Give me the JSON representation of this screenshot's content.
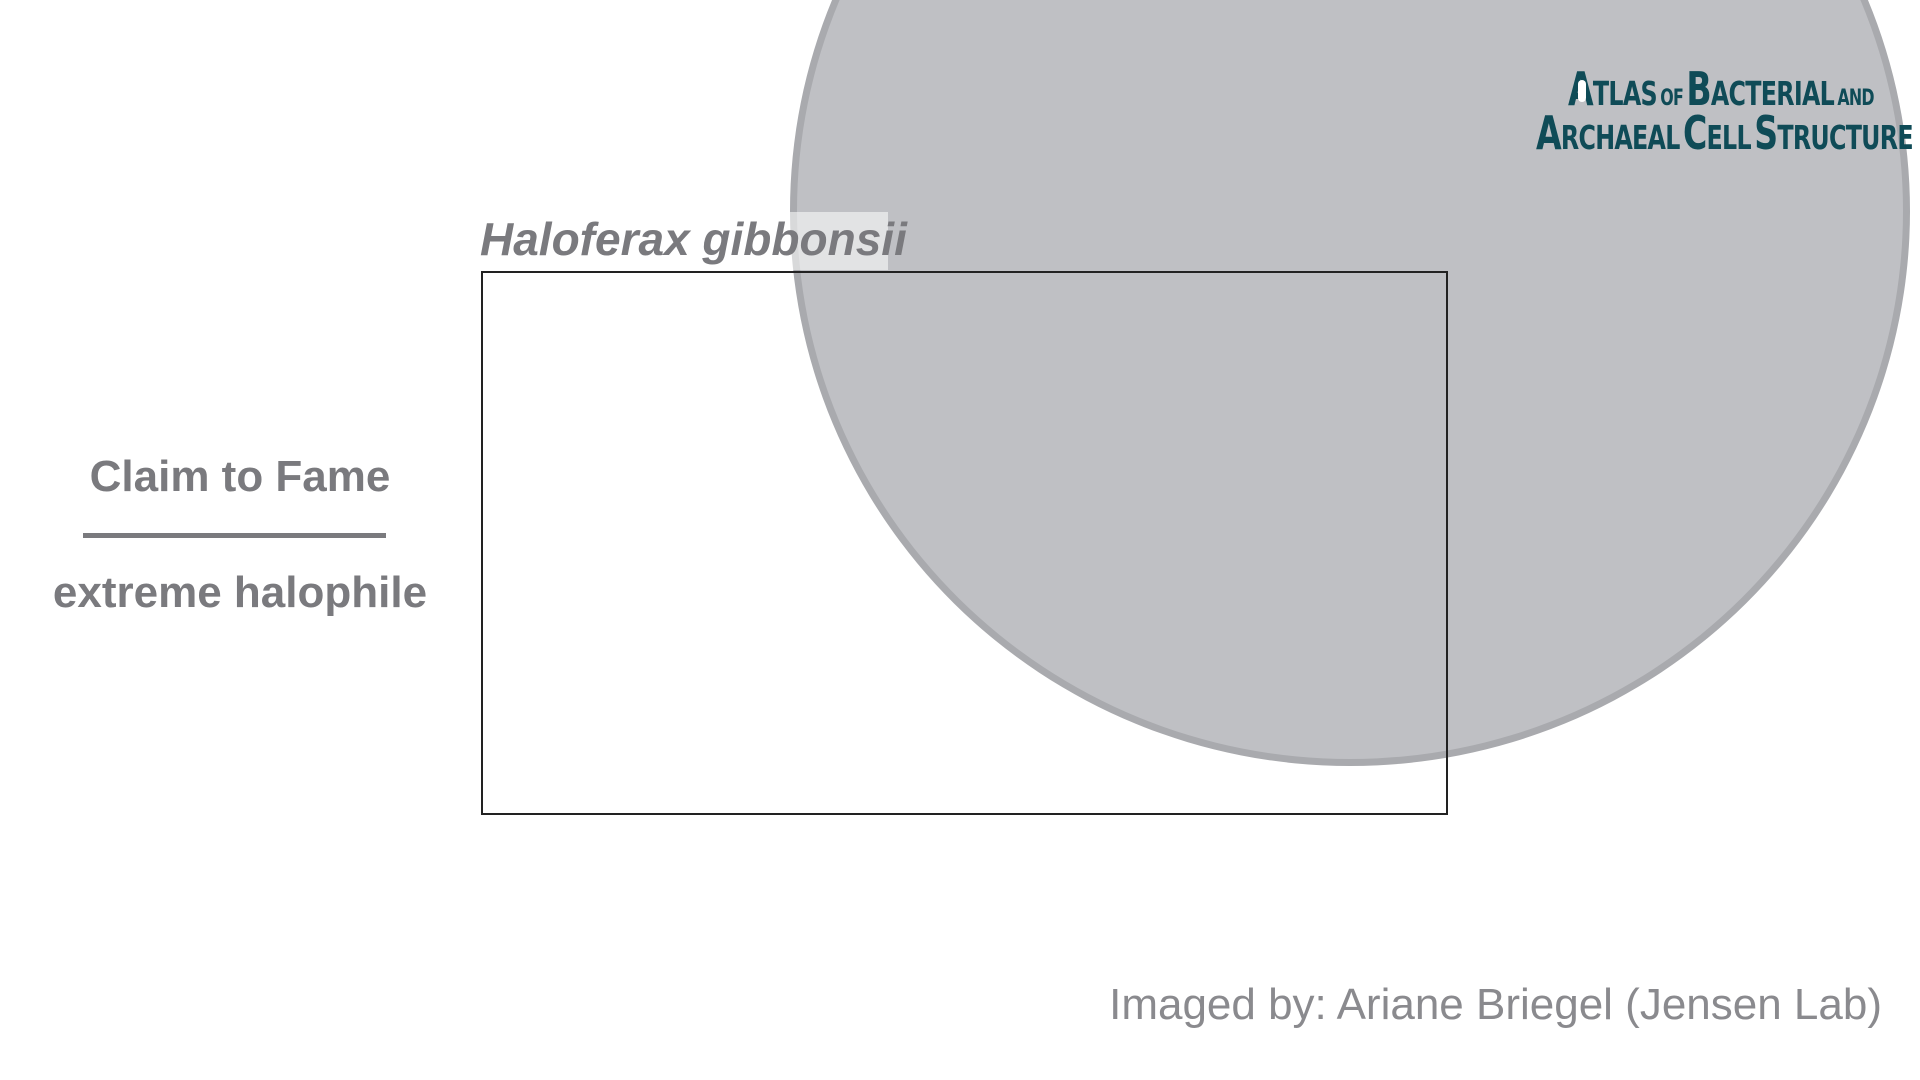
{
  "logo": {
    "line1": {
      "a": "A",
      "tlas": "TLAS",
      "of": "OF",
      "b": "B",
      "acterial": "ACTERIAL",
      "and": "AND"
    },
    "line2": {
      "a": "A",
      "rchaeal": "RCHAEAL",
      "c": "C",
      "ell": "ELL",
      "s": "S",
      "tructure": "TRUCTURE"
    },
    "color": "#0f4b57"
  },
  "species": {
    "name": "Haloferax gibbonsii"
  },
  "claim": {
    "title": "Claim to Fame",
    "text": "extreme halophile"
  },
  "credit": {
    "text": "Imaged by: Ariane Briegel (Jensen Lab)"
  },
  "colors": {
    "circle_fill": "#bfc0c4",
    "circle_border": "#a9aaae",
    "text_gray": "#7a7a7e"
  }
}
